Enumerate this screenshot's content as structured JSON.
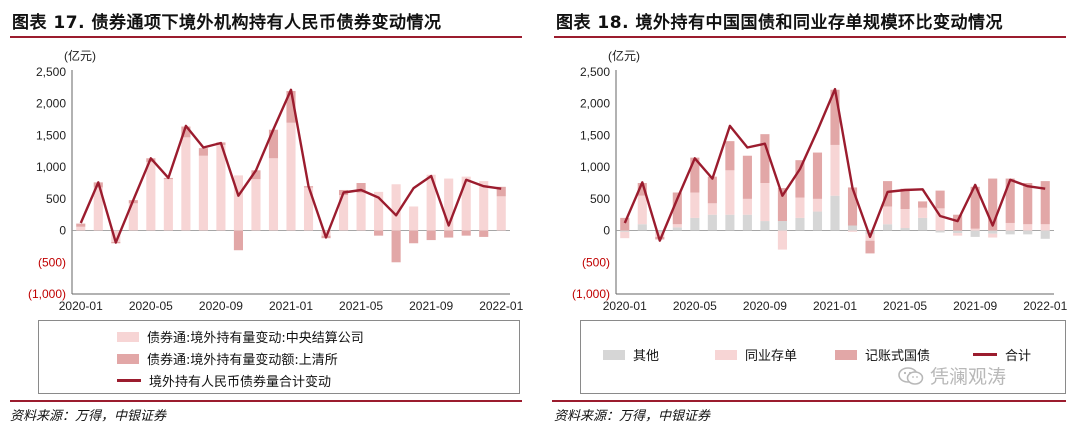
{
  "panels": [
    {
      "title": "图表 17. 债券通项下境外机构持有人民币债券变动情况",
      "source": "资料来源：万得，中银证券",
      "unit": "(亿元)",
      "legend": [
        "债券通:境外持有量变动:中央结算公司",
        "债券通:境外持有量变动额:上清所",
        "境外持有人民币债券量合计变动"
      ]
    },
    {
      "title": "图表 18. 境外持有中国国债和同业存单规模环比变动情况",
      "source": "资料来源：万得，中银证券",
      "unit": "(亿元)",
      "legend": [
        "其他",
        "同业存单",
        "记账式国债",
        "合计"
      ],
      "watermark": "凭澜观涛"
    }
  ],
  "colors": {
    "pale_pink": "#f7d5d5",
    "mid_red": "#e2a7a7",
    "grey": "#d6d6d6",
    "dark_red": "#9b1c2e",
    "rule": "#9b1c2e"
  },
  "chart_data": [
    {
      "type": "bar",
      "stacked": true,
      "x": [
        "2020-01",
        "2020-02",
        "2020-03",
        "2020-04",
        "2020-05",
        "2020-06",
        "2020-07",
        "2020-08",
        "2020-09",
        "2020-10",
        "2020-11",
        "2020-12",
        "2021-01",
        "2021-02",
        "2021-03",
        "2021-04",
        "2021-05",
        "2021-06",
        "2021-07",
        "2021-08",
        "2021-09",
        "2021-10",
        "2021-11",
        "2021-12",
        "2022-01"
      ],
      "xticks": [
        "2020-01",
        "2020-05",
        "2020-09",
        "2021-01",
        "2021-05",
        "2021-09",
        "2022-01"
      ],
      "yticks": [
        "2,500",
        "2,000",
        "1,500",
        "1,000",
        "500",
        "0",
        "(500)",
        "(1,000)"
      ],
      "ylim": [
        -1000,
        2500
      ],
      "series": [
        {
          "name": "债券通:境外持有量变动:中央结算公司",
          "kind": "bar",
          "values": [
            60,
            680,
            -180,
            430,
            1080,
            810,
            1470,
            1180,
            1350,
            870,
            810,
            1140,
            1700,
            680,
            -80,
            560,
            600,
            610,
            730,
            380,
            880,
            820,
            850,
            780,
            540
          ]
        },
        {
          "name": "债券通:境外持有量变动额:上清所",
          "kind": "bar",
          "values": [
            50,
            80,
            -20,
            50,
            60,
            20,
            170,
            120,
            40,
            -310,
            140,
            450,
            500,
            20,
            -40,
            80,
            150,
            -80,
            -500,
            -200,
            -150,
            -110,
            -80,
            -100,
            150
          ]
        },
        {
          "name": "境外持有人民币债券量合计变动",
          "kind": "line",
          "values": [
            120,
            760,
            -190,
            480,
            1140,
            830,
            1650,
            1310,
            1380,
            550,
            950,
            1600,
            2220,
            700,
            -110,
            600,
            640,
            520,
            240,
            670,
            860,
            80,
            800,
            700,
            660
          ]
        }
      ]
    },
    {
      "type": "bar",
      "stacked": true,
      "x": [
        "2020-01",
        "2020-02",
        "2020-03",
        "2020-04",
        "2020-05",
        "2020-06",
        "2020-07",
        "2020-08",
        "2020-09",
        "2020-10",
        "2020-11",
        "2020-12",
        "2021-01",
        "2021-02",
        "2021-03",
        "2021-04",
        "2021-05",
        "2021-06",
        "2021-07",
        "2021-08",
        "2021-09",
        "2021-10",
        "2021-11",
        "2021-12",
        "2022-01"
      ],
      "xticks": [
        "2020-01",
        "2020-05",
        "2020-09",
        "2021-01",
        "2021-05",
        "2021-09",
        "2022-01"
      ],
      "yticks": [
        "2,500",
        "2,000",
        "1,500",
        "1,000",
        "500",
        "0",
        "(500)",
        "(1,000)"
      ],
      "ylim": [
        -1000,
        2500
      ],
      "series": [
        {
          "name": "其他",
          "kind": "bar",
          "values": [
            -20,
            100,
            -30,
            50,
            200,
            250,
            250,
            250,
            150,
            150,
            200,
            300,
            550,
            80,
            -60,
            100,
            40,
            200,
            -30,
            -40,
            -100,
            -50,
            -60,
            -60,
            -130
          ]
        },
        {
          "name": "同业存单",
          "kind": "bar",
          "values": [
            -100,
            450,
            -70,
            50,
            400,
            180,
            700,
            250,
            600,
            -300,
            320,
            200,
            800,
            -20,
            -100,
            280,
            300,
            160,
            350,
            -40,
            30,
            -60,
            120,
            100,
            100
          ]
        },
        {
          "name": "记账式国债",
          "kind": "bar",
          "values": [
            200,
            200,
            -40,
            500,
            550,
            420,
            460,
            680,
            770,
            520,
            590,
            730,
            870,
            600,
            -200,
            400,
            320,
            100,
            280,
            250,
            660,
            820,
            700,
            650,
            680
          ]
        },
        {
          "name": "合计",
          "kind": "line",
          "values": [
            120,
            760,
            -160,
            500,
            1140,
            820,
            1650,
            1310,
            1370,
            550,
            970,
            1580,
            2230,
            670,
            -100,
            610,
            640,
            650,
            230,
            150,
            720,
            80,
            800,
            700,
            660
          ]
        }
      ]
    }
  ]
}
